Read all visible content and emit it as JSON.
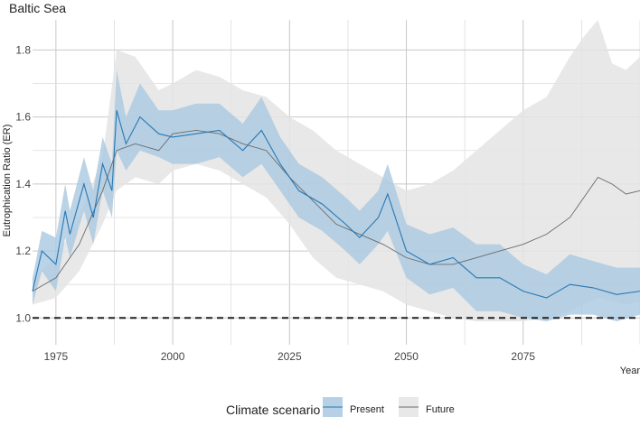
{
  "chart_data": {
    "type": "line",
    "title": "Baltic Sea",
    "xlabel": "Year",
    "ylabel": "Eutrophication Ratio (ER)",
    "xlim": [
      1970,
      2100
    ],
    "ylim": [
      0.92,
      1.89
    ],
    "x_ticks": [
      1975,
      2000,
      2025,
      2050,
      2075
    ],
    "y_ticks": [
      1.0,
      1.2,
      1.4,
      1.6,
      1.8
    ],
    "grid": true,
    "reference_line": {
      "y": 1.0,
      "style": "dashed",
      "color": "#222222"
    },
    "legend": {
      "title": "Climate scenario",
      "position": "bottom",
      "entries": [
        "Present",
        "Future"
      ]
    },
    "series": [
      {
        "name": "Present",
        "color": "#2878b5",
        "ribbon_color": "#a9c8e0",
        "x": [
          1970,
          1972,
          1975,
          1977,
          1978,
          1981,
          1983,
          1985,
          1987,
          1988,
          1990,
          1993,
          1997,
          2000,
          2005,
          2010,
          2015,
          2019,
          2023,
          2027,
          2032,
          2037,
          2040,
          2044,
          2046,
          2050,
          2055,
          2060,
          2065,
          2070,
          2075,
          2080,
          2085,
          2090,
          2095,
          2100
        ],
        "values": [
          1.08,
          1.2,
          1.16,
          1.32,
          1.25,
          1.4,
          1.3,
          1.46,
          1.38,
          1.62,
          1.52,
          1.6,
          1.55,
          1.54,
          1.55,
          1.56,
          1.5,
          1.56,
          1.46,
          1.38,
          1.34,
          1.28,
          1.24,
          1.3,
          1.37,
          1.2,
          1.16,
          1.18,
          1.12,
          1.12,
          1.08,
          1.06,
          1.1,
          1.09,
          1.07,
          1.08
        ],
        "lower": [
          1.04,
          1.14,
          1.08,
          1.24,
          1.18,
          1.32,
          1.22,
          1.38,
          1.3,
          1.5,
          1.44,
          1.5,
          1.48,
          1.46,
          1.46,
          1.48,
          1.42,
          1.46,
          1.38,
          1.3,
          1.26,
          1.2,
          1.16,
          1.22,
          1.26,
          1.12,
          1.07,
          1.09,
          1.02,
          1.02,
          1.0,
          0.99,
          1.01,
          1.01,
          0.99,
          1.01
        ],
        "upper": [
          1.12,
          1.26,
          1.24,
          1.4,
          1.32,
          1.48,
          1.38,
          1.54,
          1.46,
          1.74,
          1.6,
          1.7,
          1.62,
          1.62,
          1.64,
          1.64,
          1.58,
          1.66,
          1.54,
          1.46,
          1.42,
          1.36,
          1.32,
          1.38,
          1.46,
          1.28,
          1.25,
          1.27,
          1.22,
          1.22,
          1.16,
          1.13,
          1.19,
          1.17,
          1.15,
          1.15
        ]
      },
      {
        "name": "Future",
        "color": "#6b6b6b",
        "ribbon_color": "#e4e4e4",
        "x": [
          1970,
          1975,
          1980,
          1985,
          1988,
          1992,
          1997,
          2000,
          2005,
          2010,
          2015,
          2020,
          2025,
          2030,
          2035,
          2040,
          2045,
          2050,
          2055,
          2060,
          2065,
          2070,
          2075,
          2080,
          2085,
          2088,
          2091,
          2094,
          2097,
          2100
        ],
        "values": [
          1.08,
          1.12,
          1.22,
          1.38,
          1.5,
          1.52,
          1.5,
          1.55,
          1.56,
          1.55,
          1.52,
          1.5,
          1.42,
          1.35,
          1.28,
          1.25,
          1.22,
          1.18,
          1.16,
          1.16,
          1.18,
          1.2,
          1.22,
          1.25,
          1.3,
          1.36,
          1.42,
          1.4,
          1.37,
          1.38
        ],
        "lower": [
          1.04,
          1.06,
          1.14,
          1.28,
          1.38,
          1.42,
          1.4,
          1.44,
          1.46,
          1.44,
          1.4,
          1.36,
          1.28,
          1.18,
          1.12,
          1.1,
          1.08,
          1.04,
          1.02,
          1.0,
          0.99,
          0.99,
          0.99,
          1.0,
          1.02,
          1.04,
          1.06,
          1.05,
          1.04,
          1.05
        ],
        "upper": [
          1.12,
          1.18,
          1.3,
          1.48,
          1.8,
          1.78,
          1.68,
          1.7,
          1.74,
          1.72,
          1.68,
          1.66,
          1.6,
          1.56,
          1.5,
          1.46,
          1.42,
          1.38,
          1.4,
          1.44,
          1.5,
          1.56,
          1.62,
          1.66,
          1.78,
          1.84,
          1.89,
          1.76,
          1.74,
          1.78
        ]
      }
    ]
  }
}
